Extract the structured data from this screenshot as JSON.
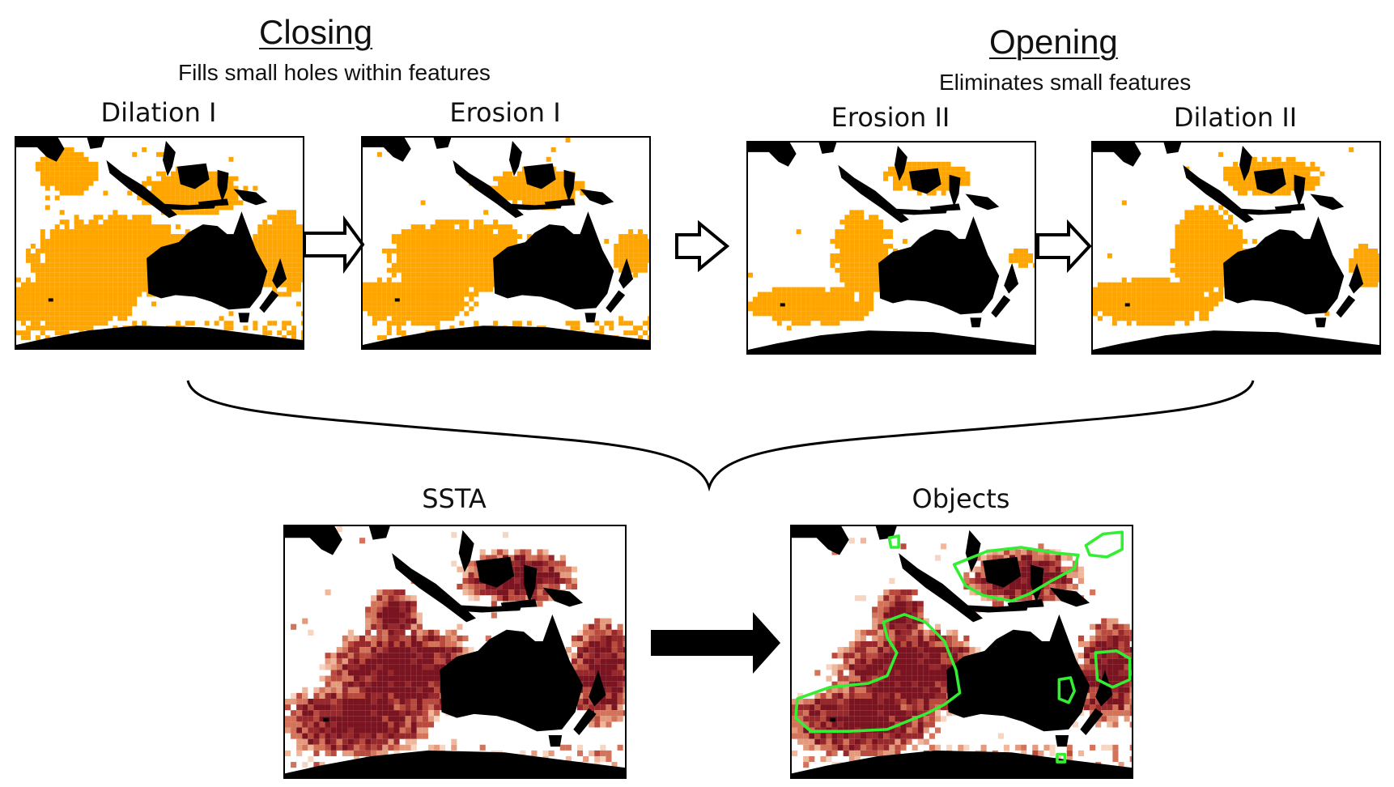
{
  "closing": {
    "heading": "Closing",
    "subtitle": "Fills small holes within features"
  },
  "opening": {
    "heading": "Opening",
    "subtitle": "Eliminates small features"
  },
  "panels": {
    "dilation1": "Dilation I",
    "erosion1": "Erosion I",
    "erosion2": "Erosion II",
    "dilation2": "Dilation II",
    "ssta": "SSTA",
    "objects": "Objects"
  },
  "colors": {
    "mask": "#FFA500",
    "land": "#000000",
    "ssta_light": "#F2C4B0",
    "ssta_dark": "#8B1A1A",
    "object_outline": "#33EE33"
  },
  "icons": {
    "process_arrow": "hollow-right-arrow-icon",
    "result_arrow": "solid-right-arrow-icon",
    "brace": "curly-brace-icon"
  }
}
